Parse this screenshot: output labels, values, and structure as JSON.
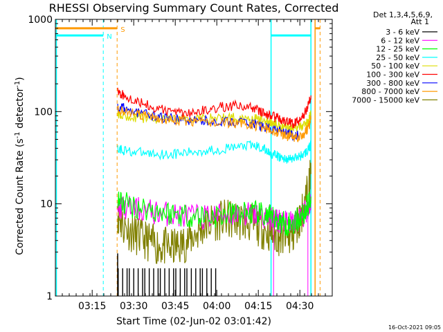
{
  "chart_data": {
    "type": "line",
    "title": "RHESSI Observing Summary Count Rates, Corrected",
    "xlabel": "Start Time (02-Jun-02 03:01:42)",
    "ylabel": "Corrected Count Rate (s",
    "ylabel_sup1": "-1",
    "ylabel_mid": " detector",
    "ylabel_sup2": "-1",
    "ylabel_end": ")",
    "x_units": "minutes after 03:01:42",
    "xlim": [
      0,
      100
    ],
    "ylim": [
      1,
      1000
    ],
    "y_scale": "log",
    "x_ticks": [
      {
        "label": "03:15",
        "value": 13.3
      },
      {
        "label": "03:30",
        "value": 28.3
      },
      {
        "label": "03:45",
        "value": 43.3
      },
      {
        "label": "04:00",
        "value": 58.3
      },
      {
        "label": "04:15",
        "value": 73.3
      },
      {
        "label": "04:30",
        "value": 88.3
      }
    ],
    "y_ticks": [
      {
        "label": "1",
        "value": 1
      },
      {
        "label": "10",
        "value": 10
      },
      {
        "label": "100",
        "value": 100
      },
      {
        "label": "1000",
        "value": 1000
      }
    ],
    "legend": {
      "header": [
        "Det 1,3,4,5,6,9,",
        "Att 1"
      ],
      "placement": "right, outside plot"
    },
    "series": [
      {
        "name": "3 - 6 keV",
        "color": "#000000",
        "x": [
          22.7,
          23.5,
          24.3,
          25.1,
          25.9,
          26.7,
          27.5,
          28.3,
          29.1,
          29.9,
          30.7,
          31.5,
          32.3,
          33.1,
          33.9,
          34.7,
          35.5,
          36.3,
          37.1,
          37.9,
          38.7,
          39.5,
          40.3,
          41.1,
          41.9,
          42.7,
          43.5,
          44.3,
          45.1,
          45.9,
          46.7,
          47.5,
          48.3,
          49.1,
          49.9,
          50.7,
          51.5,
          52.3,
          53.1,
          53.9,
          54.7,
          55.5,
          56.3,
          57.1,
          57.9
        ],
        "y": [
          2,
          1,
          2,
          1,
          2,
          2,
          1,
          2,
          1,
          2,
          1,
          2,
          2,
          1,
          2,
          1,
          2,
          1,
          2,
          2,
          1,
          2,
          1,
          2,
          1,
          2,
          2,
          1,
          2,
          1,
          2,
          2,
          1,
          2,
          1,
          2,
          1,
          2,
          2,
          1,
          2,
          1,
          2,
          1,
          2
        ]
      },
      {
        "name": "6 - 12 keV",
        "color": "#ff00ff",
        "x": [
          22.5,
          25,
          30,
          35,
          40,
          45,
          50,
          55,
          60,
          65,
          70,
          73,
          76,
          78,
          80,
          82,
          84,
          86,
          88,
          90,
          91.5,
          92.3
        ],
        "y": [
          9.5,
          9,
          8.7,
          8.2,
          7.8,
          7.5,
          7.2,
          7.3,
          7.5,
          7.8,
          7.8,
          7.5,
          7.2,
          7.0,
          6.7,
          6.3,
          6.0,
          6.2,
          6.7,
          7.8,
          9.5,
          11
        ]
      },
      {
        "name": "12 - 25 keV",
        "color": "#00ff00",
        "x": [
          22.5,
          25,
          30,
          35,
          40,
          45,
          50,
          55,
          60,
          65,
          70,
          73,
          76,
          78,
          80,
          82,
          84,
          86,
          88,
          90,
          91.5,
          92.3
        ],
        "y": [
          11,
          10,
          9.3,
          8.6,
          8.0,
          7.7,
          7.4,
          7.3,
          7.5,
          7.8,
          8.0,
          7.8,
          7.3,
          7.0,
          6.6,
          6.3,
          6.0,
          6.3,
          6.9,
          8.0,
          10,
          12
        ]
      },
      {
        "name": "25 - 50 keV",
        "color": "#00ffff",
        "x": [
          22.5,
          25,
          30,
          35,
          40,
          45,
          50,
          55,
          60,
          65,
          70,
          73,
          76,
          78,
          80,
          82,
          84,
          86,
          88,
          90,
          91.5,
          92.3
        ],
        "y": [
          40,
          38,
          36,
          35,
          34.5,
          35,
          36.5,
          38,
          39,
          41,
          43,
          42,
          38,
          35,
          33,
          31,
          30.5,
          31,
          32.5,
          35,
          39,
          44
        ]
      },
      {
        "name": "50 - 100 keV",
        "color": "#dddd00",
        "x": [
          22.5,
          25,
          30,
          35,
          40,
          45,
          50,
          55,
          60,
          65,
          70,
          73,
          76,
          78,
          80,
          82,
          84,
          86,
          88,
          90,
          91.5,
          92.3
        ],
        "y": [
          95,
          90,
          86,
          84,
          83,
          83,
          84,
          85,
          86,
          86,
          85,
          83,
          79,
          75,
          72,
          69,
          67,
          66,
          68,
          72,
          80,
          95
        ]
      },
      {
        "name": "100 - 300 keV",
        "color": "#ff0000",
        "x": [
          22.5,
          25,
          30,
          35,
          40,
          45,
          50,
          55,
          60,
          65,
          70,
          73,
          76,
          78,
          80,
          82,
          84,
          86,
          88,
          90,
          91.5,
          92.3
        ],
        "y": [
          162,
          150,
          130,
          112,
          102,
          98,
          99,
          104,
          112,
          116,
          113,
          104,
          94,
          89,
          86,
          81,
          76,
          74,
          80,
          95,
          120,
          150
        ]
      },
      {
        "name": "300 - 800 keV",
        "color": "#0000ff",
        "x": [
          22.5,
          25,
          30,
          35,
          40,
          45,
          50,
          55,
          60,
          65,
          70,
          73,
          76,
          78,
          80,
          82,
          84,
          86,
          88
        ],
        "y": [
          115,
          108,
          97,
          90,
          85,
          82,
          80,
          79,
          78,
          77,
          75,
          72,
          67,
          64,
          62,
          60,
          58,
          56,
          55
        ]
      },
      {
        "name": "800 - 7000 keV",
        "color": "#ff9900",
        "x": [
          22.5,
          25,
          30,
          35,
          40,
          45,
          50,
          55,
          60,
          65,
          70,
          73,
          76,
          78,
          80,
          82,
          84,
          86,
          88,
          90,
          91.5,
          92.3
        ],
        "y": [
          108,
          100,
          92,
          86,
          82,
          80,
          78,
          77,
          76,
          75,
          73,
          70,
          66,
          63,
          60,
          57,
          54,
          52,
          53,
          58,
          68,
          82
        ]
      },
      {
        "name": "7000 - 15000 keV",
        "color": "#808000",
        "x": [
          22.5,
          24,
          27,
          30,
          33,
          36,
          39,
          42,
          45,
          48,
          51,
          54,
          57,
          60,
          63,
          66,
          69,
          72,
          75,
          78,
          80,
          82,
          84,
          86,
          88,
          90,
          91.5,
          92.3
        ],
        "y": [
          8,
          6,
          5,
          4.4,
          4,
          3.6,
          3.4,
          3.3,
          3.5,
          4.0,
          4.8,
          5.8,
          6.4,
          6.7,
          6.7,
          6.6,
          6.3,
          5.9,
          5.3,
          4.8,
          4.5,
          4.3,
          4.3,
          4.7,
          6.5,
          10,
          15,
          21
        ]
      }
    ],
    "flags": [
      {
        "label": "S",
        "color": "#ff9900",
        "level": 800,
        "segments": [
          [
            0,
            22.3
          ],
          [
            93.8,
            95.6
          ]
        ],
        "dashed_lines": [
          22.3,
          95.6
        ]
      },
      {
        "label": "N",
        "color": "#00ffff",
        "level": 670,
        "segments": [
          [
            0,
            17.3
          ],
          [
            77.9,
            92.3
          ]
        ],
        "dashed_lines": [
          17.3
        ]
      }
    ],
    "cyan_vertical_lines": [
      77.9,
      92.3
    ],
    "orange_vertical_lines": [
      93.8
    ],
    "timestamp": "16-Oct-2021 09:05"
  }
}
